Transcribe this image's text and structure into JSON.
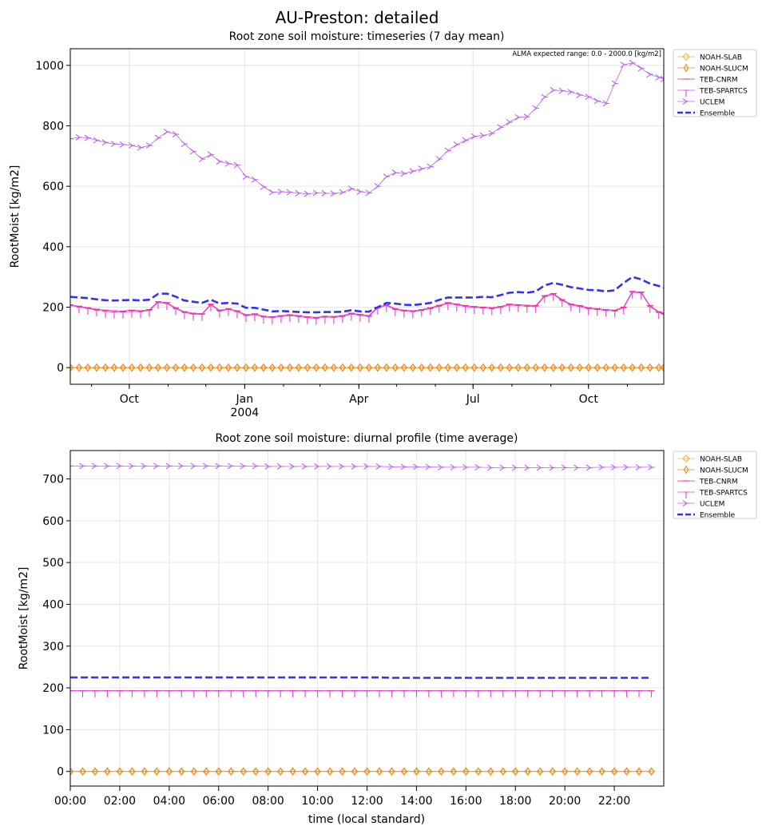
{
  "figure": {
    "title": "AU-Preston: detailed"
  },
  "colors": {
    "NOAH-SLAB": "#f5b041",
    "NOAH-SLUCM": "#f08a24",
    "TEB-CNRM": "#e8288c",
    "TEB-SPARTCS": "#e040d8",
    "UCLEM": "#c060f0",
    "Ensemble": "#3333ee"
  },
  "legend": [
    "NOAH-SLAB",
    "NOAH-SLUCM",
    "TEB-CNRM",
    "TEB-SPARTCS",
    "UCLEM",
    "Ensemble"
  ],
  "chart_data": [
    {
      "type": "line",
      "title": "Root zone soil moisture: timeseries (7 day mean)",
      "annotation": "ALMA expected range: 0.0 - 2000.0 [kg/m2]",
      "ylabel": "RootMoist [kg/m2]",
      "xlabel": "",
      "xlim": [
        "2003-08-15",
        "2004-11-30"
      ],
      "ylim": [
        -55,
        1055
      ],
      "yticks": [
        0,
        200,
        400,
        600,
        800,
        1000
      ],
      "xticks": [
        {
          "date": "2003-10-01",
          "label": "Oct"
        },
        {
          "date": "2004-01-01",
          "label": "Jan",
          "sublabel": "2004"
        },
        {
          "date": "2004-04-01",
          "label": "Apr"
        },
        {
          "date": "2004-07-01",
          "label": "Jul"
        },
        {
          "date": "2004-10-01",
          "label": "Oct"
        }
      ],
      "grid": true,
      "legend_position": "outside-right",
      "x": [
        "2003-08-15",
        "2003-08-22",
        "2003-08-29",
        "2003-09-05",
        "2003-09-12",
        "2003-09-19",
        "2003-09-26",
        "2003-10-03",
        "2003-10-10",
        "2003-10-17",
        "2003-10-24",
        "2003-10-31",
        "2003-11-07",
        "2003-11-14",
        "2003-11-21",
        "2003-11-28",
        "2003-12-05",
        "2003-12-12",
        "2003-12-19",
        "2003-12-26",
        "2004-01-02",
        "2004-01-09",
        "2004-01-16",
        "2004-01-23",
        "2004-01-30",
        "2004-02-06",
        "2004-02-13",
        "2004-02-20",
        "2004-02-27",
        "2004-03-05",
        "2004-03-12",
        "2004-03-19",
        "2004-03-26",
        "2004-04-02",
        "2004-04-09",
        "2004-04-16",
        "2004-04-23",
        "2004-04-30",
        "2004-05-07",
        "2004-05-14",
        "2004-05-21",
        "2004-05-28",
        "2004-06-04",
        "2004-06-11",
        "2004-06-18",
        "2004-06-25",
        "2004-07-02",
        "2004-07-09",
        "2004-07-16",
        "2004-07-23",
        "2004-07-30",
        "2004-08-06",
        "2004-08-13",
        "2004-08-20",
        "2004-08-27",
        "2004-09-03",
        "2004-09-10",
        "2004-09-17",
        "2004-09-24",
        "2004-10-01",
        "2004-10-08",
        "2004-10-15",
        "2004-10-22",
        "2004-10-29",
        "2004-11-05",
        "2004-11-12",
        "2004-11-19",
        "2004-11-26",
        "2004-11-30"
      ],
      "series": [
        {
          "name": "NOAH-SLAB",
          "marker": "diamond-open",
          "values": [
            0,
            0,
            0,
            0,
            0,
            0,
            0,
            0,
            0,
            0,
            0,
            0,
            0,
            0,
            0,
            0,
            0,
            0,
            0,
            0,
            0,
            0,
            0,
            0,
            0,
            0,
            0,
            0,
            0,
            0,
            0,
            0,
            0,
            0,
            0,
            0,
            0,
            0,
            0,
            0,
            0,
            0,
            0,
            0,
            0,
            0,
            0,
            0,
            0,
            0,
            0,
            0,
            0,
            0,
            0,
            0,
            0,
            0,
            0,
            0,
            0,
            0,
            0,
            0,
            0,
            0,
            0,
            0,
            0
          ]
        },
        {
          "name": "NOAH-SLUCM",
          "marker": "thin-diamond-open",
          "values": [
            0,
            0,
            0,
            0,
            0,
            0,
            0,
            0,
            0,
            0,
            0,
            0,
            0,
            0,
            0,
            0,
            0,
            0,
            0,
            0,
            0,
            0,
            0,
            0,
            0,
            0,
            0,
            0,
            0,
            0,
            0,
            0,
            0,
            0,
            0,
            0,
            0,
            0,
            0,
            0,
            0,
            0,
            0,
            0,
            0,
            0,
            0,
            0,
            0,
            0,
            0,
            0,
            0,
            0,
            0,
            0,
            0,
            0,
            0,
            0,
            0,
            0,
            0,
            0,
            0,
            0,
            0,
            0,
            0
          ]
        },
        {
          "name": "TEB-CNRM",
          "marker": "hline",
          "values": [
            208,
            203,
            198,
            193,
            190,
            188,
            187,
            190,
            188,
            192,
            218,
            215,
            198,
            185,
            180,
            178,
            210,
            190,
            195,
            188,
            175,
            178,
            170,
            168,
            172,
            175,
            172,
            168,
            166,
            170,
            169,
            172,
            180,
            176,
            172,
            200,
            208,
            195,
            190,
            188,
            192,
            198,
            206,
            215,
            210,
            205,
            202,
            200,
            198,
            202,
            210,
            208,
            206,
            205,
            238,
            245,
            225,
            210,
            205,
            198,
            195,
            192,
            190,
            200,
            252,
            250,
            205,
            185,
            180
          ]
        },
        {
          "name": "TEB-SPARTCS",
          "marker": "tick-down",
          "values": [
            205,
            200,
            196,
            190,
            186,
            184,
            184,
            186,
            185,
            189,
            215,
            212,
            195,
            182,
            177,
            176,
            207,
            187,
            192,
            185,
            172,
            175,
            167,
            165,
            169,
            172,
            169,
            165,
            163,
            167,
            166,
            169,
            177,
            173,
            169,
            197,
            205,
            192,
            187,
            185,
            189,
            195,
            203,
            212,
            207,
            202,
            199,
            197,
            195,
            199,
            207,
            205,
            203,
            202,
            235,
            242,
            222,
            207,
            202,
            195,
            192,
            189,
            187,
            197,
            249,
            247,
            202,
            182,
            177
          ]
        },
        {
          "name": "UCLEM",
          "marker": "tri-right",
          "values": [
            757,
            762,
            760,
            752,
            745,
            740,
            738,
            735,
            728,
            735,
            760,
            780,
            772,
            740,
            715,
            690,
            705,
            682,
            675,
            670,
            632,
            622,
            598,
            580,
            582,
            580,
            577,
            575,
            578,
            577,
            576,
            580,
            592,
            582,
            578,
            600,
            632,
            645,
            642,
            650,
            658,
            665,
            690,
            718,
            738,
            752,
            765,
            768,
            775,
            795,
            812,
            828,
            830,
            858,
            895,
            918,
            916,
            912,
            902,
            896,
            882,
            874,
            940,
            1002,
            1008,
            990,
            970,
            960,
            955
          ]
        },
        {
          "name": "Ensemble",
          "marker": "none",
          "values": [
            234,
            232,
            230,
            226,
            223,
            222,
            223,
            224,
            222,
            225,
            244,
            245,
            235,
            222,
            218,
            214,
            225,
            212,
            214,
            212,
            198,
            198,
            192,
            186,
            187,
            186,
            184,
            183,
            183,
            184,
            184,
            185,
            190,
            186,
            185,
            200,
            214,
            212,
            208,
            207,
            210,
            214,
            224,
            232,
            232,
            232,
            232,
            234,
            233,
            240,
            248,
            250,
            248,
            252,
            272,
            280,
            274,
            266,
            262,
            257,
            256,
            252,
            256,
            280,
            300,
            292,
            278,
            270,
            265
          ]
        }
      ]
    },
    {
      "type": "line",
      "title": "Root zone soil moisture: diurnal profile (time average)",
      "ylabel": "RootMoist [kg/m2]",
      "xlabel": "time (local standard)",
      "xlim": [
        0,
        24
      ],
      "ylim": [
        -35,
        768
      ],
      "yticks": [
        0,
        100,
        200,
        300,
        400,
        500,
        600,
        700
      ],
      "xticks": [
        {
          "value": 0,
          "label": "00:00"
        },
        {
          "value": 2,
          "label": "02:00"
        },
        {
          "value": 4,
          "label": "04:00"
        },
        {
          "value": 6,
          "label": "06:00"
        },
        {
          "value": 8,
          "label": "08:00"
        },
        {
          "value": 10,
          "label": "10:00"
        },
        {
          "value": 12,
          "label": "12:00"
        },
        {
          "value": 14,
          "label": "14:00"
        },
        {
          "value": 16,
          "label": "16:00"
        },
        {
          "value": 18,
          "label": "18:00"
        },
        {
          "value": 20,
          "label": "20:00"
        },
        {
          "value": 22,
          "label": "22:00"
        }
      ],
      "grid": true,
      "legend_position": "outside-right",
      "x": [
        0,
        0.5,
        1,
        1.5,
        2,
        2.5,
        3,
        3.5,
        4,
        4.5,
        5,
        5.5,
        6,
        6.5,
        7,
        7.5,
        8,
        8.5,
        9,
        9.5,
        10,
        10.5,
        11,
        11.5,
        12,
        12.5,
        13,
        13.5,
        14,
        14.5,
        15,
        15.5,
        16,
        16.5,
        17,
        17.5,
        18,
        18.5,
        19,
        19.5,
        20,
        20.5,
        21,
        21.5,
        22,
        22.5,
        23,
        23.5
      ],
      "series": [
        {
          "name": "NOAH-SLAB",
          "marker": "diamond-open",
          "values": [
            0,
            0,
            0,
            0,
            0,
            0,
            0,
            0,
            0,
            0,
            0,
            0,
            0,
            0,
            0,
            0,
            0,
            0,
            0,
            0,
            0,
            0,
            0,
            0,
            0,
            0,
            0,
            0,
            0,
            0,
            0,
            0,
            0,
            0,
            0,
            0,
            0,
            0,
            0,
            0,
            0,
            0,
            0,
            0,
            0,
            0,
            0,
            0
          ]
        },
        {
          "name": "NOAH-SLUCM",
          "marker": "thin-diamond-open",
          "values": [
            0,
            0,
            0,
            0,
            0,
            0,
            0,
            0,
            0,
            0,
            0,
            0,
            0,
            0,
            0,
            0,
            0,
            0,
            0,
            0,
            0,
            0,
            0,
            0,
            0,
            0,
            0,
            0,
            0,
            0,
            0,
            0,
            0,
            0,
            0,
            0,
            0,
            0,
            0,
            0,
            0,
            0,
            0,
            0,
            0,
            0,
            0,
            0
          ]
        },
        {
          "name": "TEB-CNRM",
          "marker": "hline",
          "values": [
            193,
            193,
            193,
            193,
            193,
            193,
            193,
            193,
            193,
            193,
            193,
            193,
            193,
            193,
            193,
            193,
            193,
            193,
            193,
            193,
            193,
            193,
            193,
            193,
            193,
            193,
            193,
            193,
            193,
            193,
            193,
            193,
            193,
            193,
            193,
            193,
            193,
            193,
            193,
            193,
            193,
            193,
            193,
            193,
            193,
            193,
            193,
            193
          ]
        },
        {
          "name": "TEB-SPARTCS",
          "marker": "tick-down",
          "values": [
            193,
            193,
            193,
            193,
            193,
            193,
            193,
            193,
            193,
            193,
            193,
            193,
            193,
            193,
            193,
            193,
            193,
            193,
            193,
            193,
            193,
            193,
            193,
            193,
            193,
            193,
            193,
            193,
            193,
            193,
            193,
            193,
            193,
            193,
            193,
            193,
            193,
            193,
            193,
            193,
            193,
            193,
            193,
            193,
            193,
            193,
            193,
            193
          ]
        },
        {
          "name": "UCLEM",
          "marker": "tri-right",
          "values": [
            731,
            731,
            731,
            731,
            731,
            731,
            731,
            731,
            731,
            731,
            731,
            731,
            731,
            731,
            731,
            731,
            730,
            730,
            730,
            730,
            730,
            730,
            730,
            730,
            730,
            730,
            729,
            729,
            729,
            729,
            728,
            728,
            728,
            728,
            727,
            727,
            727,
            727,
            727,
            727,
            727,
            727,
            727,
            728,
            728,
            728,
            728,
            728
          ]
        },
        {
          "name": "Ensemble",
          "marker": "none",
          "values": [
            225,
            225,
            225,
            225,
            225,
            225,
            225,
            225,
            225,
            225,
            225,
            225,
            225,
            225,
            225,
            225,
            225,
            225,
            225,
            225,
            225,
            225,
            225,
            225,
            225,
            225,
            224,
            224,
            224,
            224,
            224,
            224,
            224,
            224,
            224,
            224,
            224,
            224,
            224,
            224,
            224,
            224,
            224,
            224,
            224,
            224,
            224,
            224
          ]
        }
      ]
    }
  ]
}
